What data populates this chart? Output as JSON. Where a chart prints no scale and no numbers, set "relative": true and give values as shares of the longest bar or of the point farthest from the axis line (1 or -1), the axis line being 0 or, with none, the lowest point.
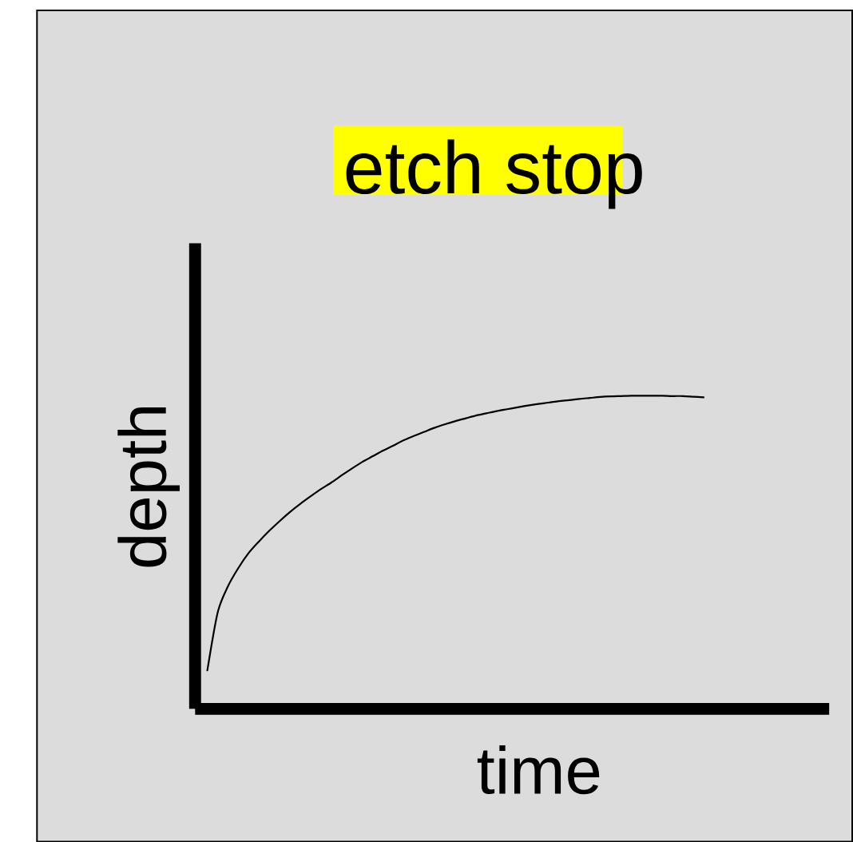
{
  "chart_data": {
    "type": "line",
    "title": "etch stop",
    "xlabel": "time",
    "ylabel": "depth",
    "relative": true,
    "categories": [
      null,
      null,
      null,
      null,
      null,
      null,
      null,
      null,
      null,
      null,
      null,
      null,
      null,
      null,
      null,
      null,
      null,
      null,
      null,
      null,
      null,
      null,
      null,
      null,
      null,
      null,
      null,
      null,
      null,
      null,
      null,
      null,
      null,
      null,
      null,
      null,
      null,
      null,
      null,
      null,
      null,
      null,
      null,
      null,
      null,
      null,
      null,
      null,
      null
    ],
    "series": [
      {
        "color": "#000000",
        "values": [
          0.123,
          0.308,
          0.392,
          0.45,
          0.498,
          0.535,
          0.569,
          0.6,
          0.629,
          0.655,
          0.679,
          0.702,
          0.723,
          0.746,
          0.768,
          0.789,
          0.807,
          0.825,
          0.841,
          0.858,
          0.872,
          0.885,
          0.898,
          0.909,
          0.919,
          0.928,
          0.937,
          0.944,
          0.951,
          0.957,
          0.963,
          0.969,
          0.974,
          0.978,
          0.983,
          0.986,
          0.99,
          0.993,
          0.996,
          0.998,
          0.999,
          1.0,
          1.0,
          1.0,
          1.0,
          0.999,
          0.999,
          0.997,
          0.995
        ]
      }
    ],
    "line_style": "solid"
  }
}
